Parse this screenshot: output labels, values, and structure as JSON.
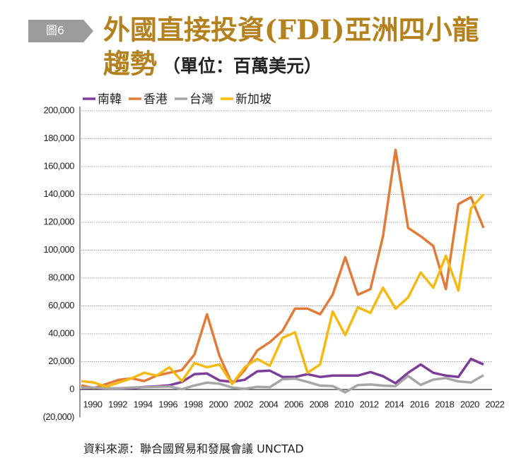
{
  "figure_label": "圖6",
  "chart_data": {
    "type": "line",
    "title": "外國直接投資(FDI)亞洲四小龍",
    "title_line2": "趨勢",
    "subtitle": "（單位：百萬美元）",
    "source": "資料來源：聯合國貿易和發展會議 UNCTAD",
    "x": [
      1990,
      1991,
      1992,
      1993,
      1994,
      1995,
      1996,
      1997,
      1998,
      1999,
      2000,
      2001,
      2002,
      2003,
      2004,
      2005,
      2006,
      2007,
      2008,
      2009,
      2010,
      2011,
      2012,
      2013,
      2014,
      2015,
      2016,
      2017,
      2018,
      2019,
      2020,
      2021,
      2022
    ],
    "xlim": [
      1990,
      2022
    ],
    "xticks": [
      1990,
      1992,
      1994,
      1996,
      1998,
      2000,
      2002,
      2004,
      2006,
      2008,
      2010,
      2012,
      2014,
      2016,
      2018,
      2020,
      2022
    ],
    "ylim": [
      -20000,
      200000
    ],
    "yticks": [
      {
        "value": -20000,
        "label": "(20,000)"
      },
      0,
      {
        "value": 20000,
        "label": "20,000"
      },
      {
        "value": 40000,
        "label": "40,000"
      },
      {
        "value": 60000,
        "label": "60,000"
      },
      {
        "value": 80000,
        "label": "80,000"
      },
      {
        "value": 100000,
        "label": "100,000"
      },
      {
        "value": 120000,
        "label": "120,000"
      },
      {
        "value": 140000,
        "label": "140,000"
      },
      {
        "value": 160000,
        "label": "160,000"
      },
      {
        "value": 180000,
        "label": "180,000"
      },
      {
        "value": 200000,
        "label": "200,000"
      }
    ],
    "grid": true,
    "legend": "top-left",
    "series": [
      {
        "name": "南韓",
        "color": "#7b3f98",
        "values": [
          800,
          1200,
          700,
          600,
          800,
          1800,
          2300,
          3000,
          5400,
          11000,
          11500,
          6500,
          5500,
          7000,
          13000,
          13500,
          9000,
          9000,
          11000,
          9000,
          10000,
          10000,
          10000,
          12500,
          9500,
          4500,
          12000,
          18000,
          12000,
          10000,
          9000,
          22000,
          18000
        ]
      },
      {
        "name": "香港",
        "color": "#e07b39",
        "values": [
          3000,
          1000,
          4000,
          7000,
          8000,
          6000,
          10000,
          12000,
          14000,
          25000,
          54000,
          24000,
          4000,
          14000,
          28000,
          34000,
          42000,
          58000,
          58000,
          54000,
          68000,
          95000,
          68000,
          72000,
          110000,
          172000,
          116000,
          110000,
          103000,
          72000,
          133000,
          138000,
          116000
        ]
      },
      {
        "name": "台灣",
        "color": "#a6a6a6",
        "values": [
          1300,
          1300,
          900,
          900,
          1400,
          1600,
          1900,
          2200,
          200,
          2900,
          4900,
          4100,
          1400,
          500,
          1900,
          1600,
          7400,
          7800,
          5400,
          2800,
          2500,
          -2000,
          3200,
          3600,
          2800,
          2400,
          9700,
          3300,
          7100,
          8200,
          5800,
          5000,
          10300
        ]
      },
      {
        "name": "新加坡",
        "color": "#f5b913",
        "values": [
          6000,
          5000,
          2000,
          5000,
          8000,
          12000,
          10000,
          16000,
          6000,
          19000,
          16000,
          18000,
          4000,
          16000,
          22000,
          17000,
          37000,
          41000,
          12000,
          18000,
          56000,
          39000,
          59000,
          55000,
          73000,
          58000,
          66000,
          84000,
          73000,
          96000,
          71000,
          130000,
          140000
        ]
      }
    ]
  }
}
